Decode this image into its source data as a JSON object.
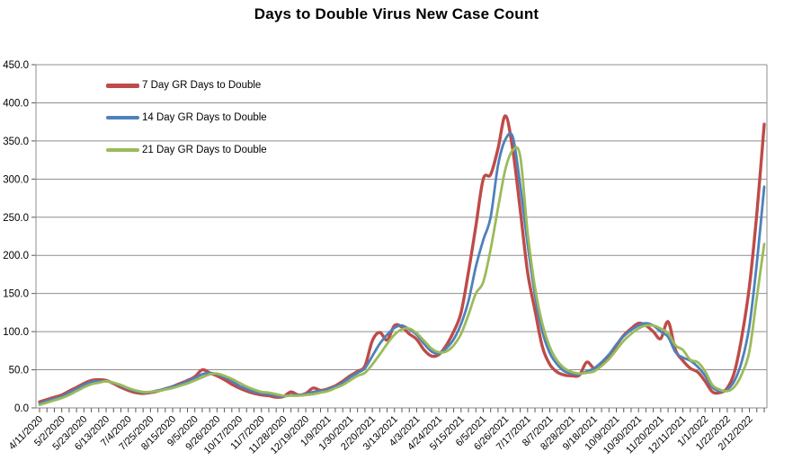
{
  "chart_data": {
    "type": "line",
    "title": "Days to Double Virus New Case Count",
    "x": [
      "4/11/2020",
      "4/18/2020",
      "4/25/2020",
      "5/2/2020",
      "5/9/2020",
      "5/16/2020",
      "5/23/2020",
      "5/30/2020",
      "6/6/2020",
      "6/13/2020",
      "6/20/2020",
      "6/27/2020",
      "7/4/2020",
      "7/11/2020",
      "7/18/2020",
      "7/25/2020",
      "8/1/2020",
      "8/8/2020",
      "8/15/2020",
      "8/22/2020",
      "8/29/2020",
      "9/5/2020",
      "9/12/2020",
      "9/19/2020",
      "9/26/2020",
      "10/3/2020",
      "10/10/2020",
      "10/17/2020",
      "10/24/2020",
      "10/31/2020",
      "11/7/2020",
      "11/14/2020",
      "11/21/2020",
      "11/28/2020",
      "12/5/2020",
      "12/12/2020",
      "12/19/2020",
      "12/26/2020",
      "1/2/2021",
      "1/9/2021",
      "1/16/2021",
      "1/23/2021",
      "1/30/2021",
      "2/6/2021",
      "2/13/2021",
      "2/20/2021",
      "2/27/2021",
      "3/6/2021",
      "3/13/2021",
      "3/20/2021",
      "3/27/2021",
      "4/3/2021",
      "4/10/2021",
      "4/17/2021",
      "4/24/2021",
      "5/1/2021",
      "5/8/2021",
      "5/15/2021",
      "5/22/2021",
      "5/29/2021",
      "6/5/2021",
      "6/12/2021",
      "6/19/2021",
      "6/26/2021",
      "7/3/2021",
      "7/10/2021",
      "7/17/2021",
      "7/24/2021",
      "7/31/2021",
      "8/7/2021",
      "8/14/2021",
      "8/21/2021",
      "8/28/2021",
      "9/4/2021",
      "9/11/2021",
      "9/18/2021",
      "9/25/2021",
      "10/2/2021",
      "10/9/2021",
      "10/16/2021",
      "10/23/2021",
      "10/30/2021",
      "11/6/2021",
      "11/13/2021",
      "11/20/2021",
      "11/27/2021",
      "12/4/2021",
      "12/11/2021",
      "12/18/2021",
      "12/25/2021",
      "1/1/2022",
      "1/8/2022",
      "1/15/2022",
      "1/22/2022",
      "1/29/2022",
      "2/5/2022",
      "2/12/2022",
      "2/19/2022",
      "2/26/2022"
    ],
    "x_label_every": 3,
    "ylim": [
      0,
      450
    ],
    "y_tick_step": 50,
    "y_tick_decimals": 1,
    "grid": true,
    "grid_color": "#8E8E8E",
    "tick_color": "#595959",
    "text_color": "#000000",
    "legend_position": "top-left-inside",
    "series": [
      {
        "name": "7 Day GR Days to Double",
        "color": "#BE4B48",
        "width": 3.4,
        "values": [
          8,
          11,
          14,
          17,
          22,
          27,
          32,
          36,
          37,
          36,
          32,
          27,
          23,
          20,
          19,
          20,
          22,
          25,
          28,
          32,
          36,
          41,
          50,
          46,
          42,
          37,
          31,
          26,
          22,
          19,
          17,
          16,
          14,
          15,
          21,
          17,
          19,
          26,
          23,
          25,
          29,
          35,
          42,
          48,
          55,
          88,
          99,
          89,
          108,
          106,
          97,
          90,
          76,
          68,
          70,
          82,
          100,
          125,
          178,
          238,
          300,
          306,
          340,
          383,
          338,
          260,
          178,
          128,
          80,
          57,
          47,
          43,
          42,
          43,
          60,
          52,
          57,
          68,
          82,
          95,
          104,
          111,
          108,
          100,
          91,
          113,
          76,
          62,
          52,
          47,
          35,
          21,
          20,
          26,
          48,
          95,
          160,
          255,
          372
        ]
      },
      {
        "name": "14 Day GR Days to Double",
        "color": "#4E81BD",
        "width": 2.8,
        "values": [
          6,
          9,
          12,
          15,
          20,
          25,
          30,
          34,
          35,
          35,
          33,
          29,
          25,
          22,
          20,
          21,
          23,
          25,
          28,
          31,
          35,
          39,
          44,
          46,
          44,
          40,
          35,
          29,
          25,
          21,
          19,
          18,
          16,
          15,
          17,
          17,
          18,
          21,
          22,
          24,
          28,
          33,
          40,
          46,
          52,
          68,
          84,
          96,
          105,
          108,
          103,
          96,
          84,
          74,
          71,
          78,
          90,
          110,
          140,
          185,
          220,
          250,
          318,
          352,
          355,
          292,
          215,
          148,
          100,
          72,
          57,
          48,
          45,
          44,
          48,
          52,
          60,
          70,
          83,
          94,
          102,
          108,
          111,
          108,
          100,
          93,
          73,
          66,
          62,
          54,
          42,
          27,
          22,
          24,
          36,
          62,
          108,
          190,
          290
        ]
      },
      {
        "name": "21 Day GR Days to Double",
        "color": "#9BBB59",
        "width": 2.8,
        "values": [
          4,
          7,
          10,
          13,
          17,
          22,
          27,
          31,
          33,
          35,
          33,
          30,
          26,
          23,
          21,
          21,
          22,
          24,
          26,
          29,
          32,
          36,
          40,
          44,
          45,
          42,
          38,
          33,
          28,
          24,
          21,
          20,
          18,
          16,
          16,
          16,
          17,
          18,
          20,
          22,
          26,
          30,
          36,
          42,
          46,
          57,
          70,
          84,
          96,
          103,
          104,
          98,
          88,
          78,
          73,
          74,
          82,
          97,
          122,
          150,
          165,
          208,
          262,
          313,
          338,
          330,
          230,
          158,
          110,
          80,
          62,
          52,
          47,
          45,
          46,
          48,
          55,
          64,
          76,
          88,
          97,
          104,
          108,
          108,
          104,
          98,
          82,
          76,
          63,
          60,
          48,
          30,
          24,
          22,
          28,
          45,
          75,
          145,
          215
        ]
      }
    ]
  }
}
